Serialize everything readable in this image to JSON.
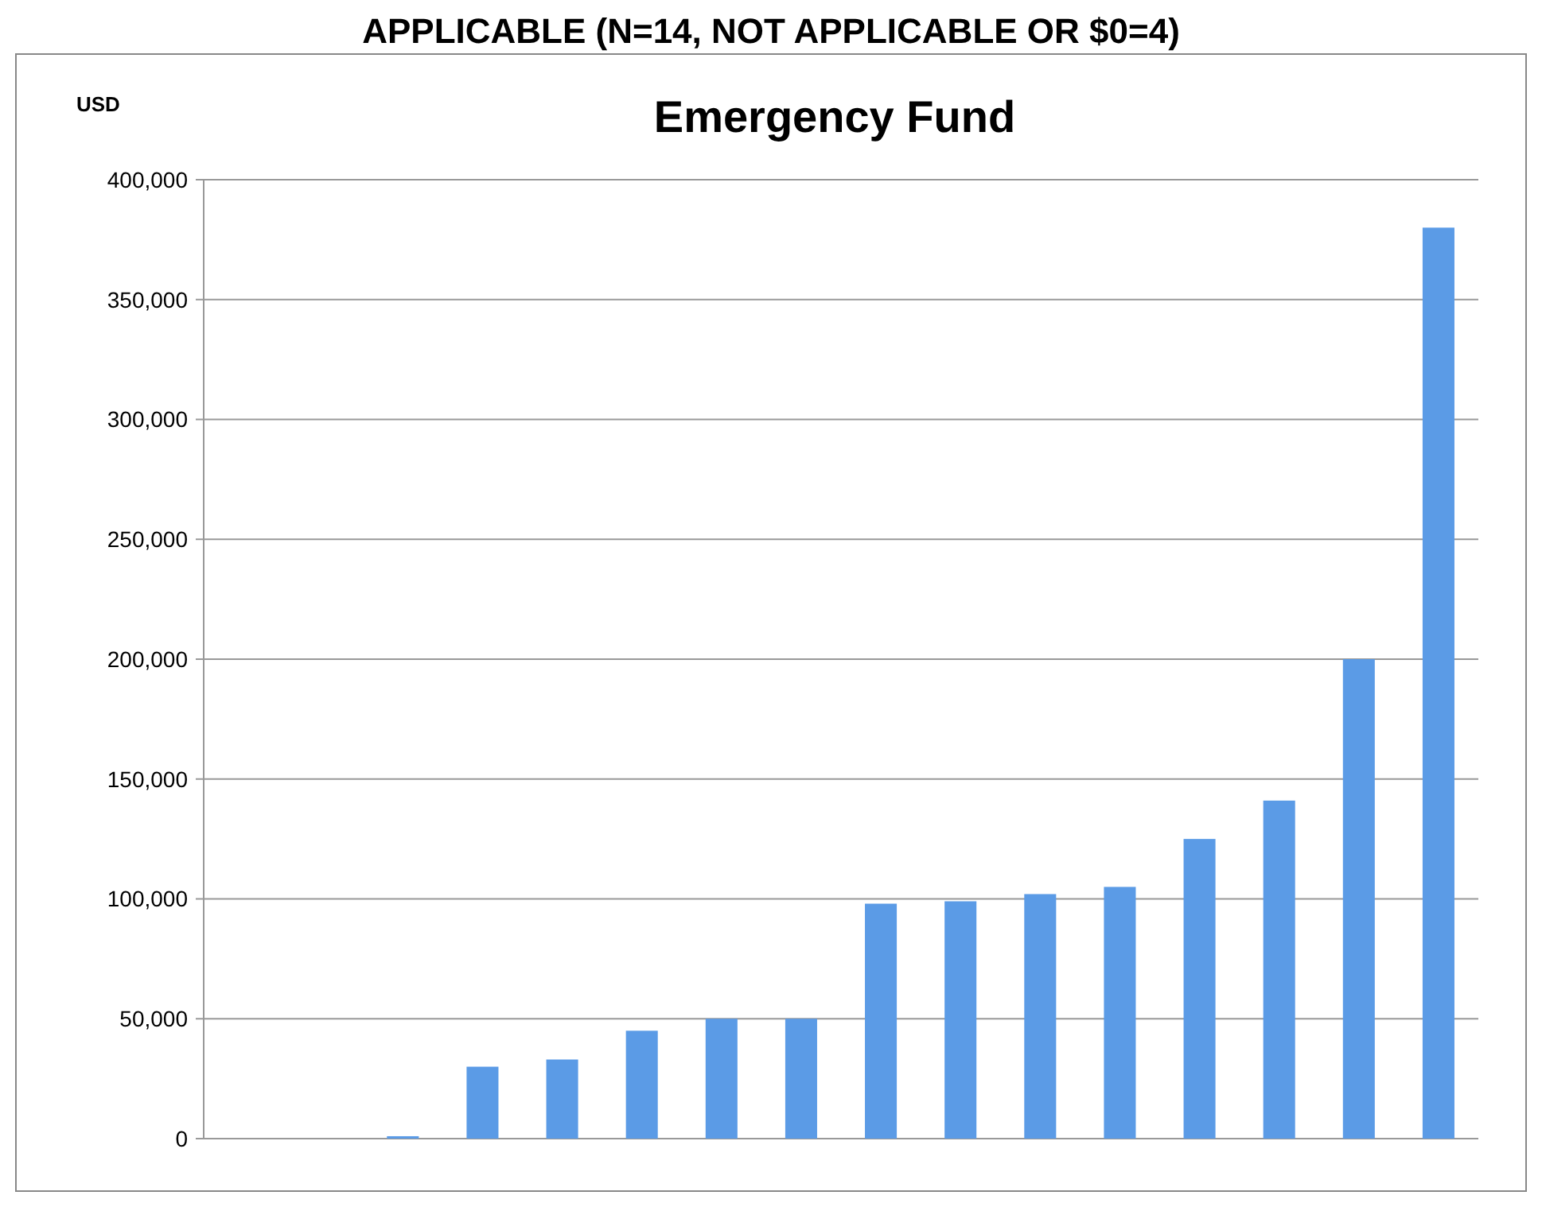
{
  "chart_data": {
    "type": "bar",
    "title": "Emergency Fund",
    "subtitle": "APPLICABLE (N=14, NOT APPLICABLE OR $0=4)",
    "ylabel": "USD",
    "categories": [
      null,
      null,
      null,
      null,
      null,
      null,
      null,
      null,
      null,
      null,
      null,
      null,
      null,
      null,
      null,
      null
    ],
    "values": [
      0,
      0,
      1000,
      30000,
      33000,
      45000,
      50000,
      50000,
      98000,
      99000,
      102000,
      105000,
      125000,
      141000,
      200000,
      380000
    ],
    "color": "#5b9be6",
    "ylim": [
      0,
      400000
    ],
    "yticks": [
      {
        "value": 0,
        "label": "0"
      },
      {
        "value": 50000,
        "label": "50,000"
      },
      {
        "value": 100000,
        "label": "100,000"
      },
      {
        "value": 150000,
        "label": "150,000"
      },
      {
        "value": 200000,
        "label": "200,000"
      },
      {
        "value": 250000,
        "label": "250,000"
      },
      {
        "value": 300000,
        "label": "300,000"
      },
      {
        "value": 350000,
        "label": "350,000"
      },
      {
        "value": 400000,
        "label": "400,000"
      }
    ],
    "grid": "y"
  }
}
